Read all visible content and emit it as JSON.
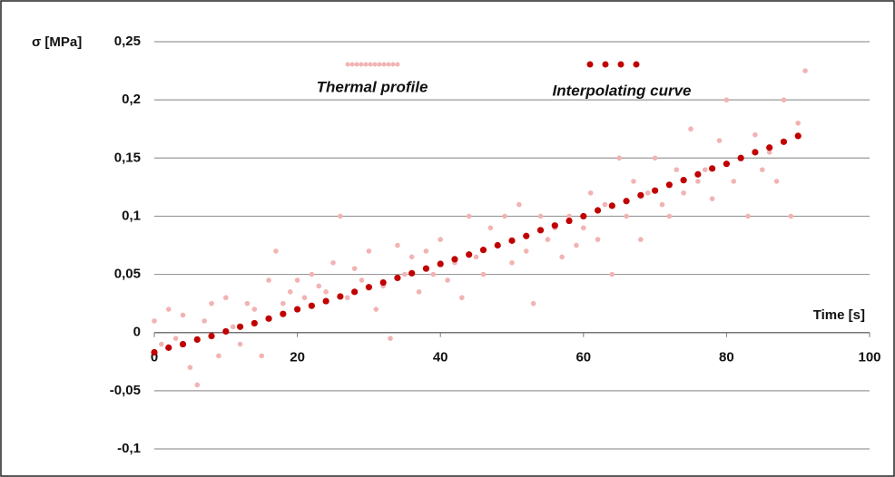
{
  "chart_data": {
    "type": "scatter",
    "y_label": "σ [MPa]",
    "x_label": "Time [s]",
    "xlim": [
      0,
      100
    ],
    "xticks": [
      0,
      20,
      40,
      60,
      80,
      100
    ],
    "ylim": [
      -0.1,
      0.25
    ],
    "yticks": [
      {
        "value": -0.1,
        "label": "-0,1"
      },
      {
        "value": -0.05,
        "label": "-0,05"
      },
      0,
      {
        "value": 0.05,
        "label": "0,05"
      },
      {
        "value": 0.1,
        "label": "0,1"
      },
      {
        "value": 0.15,
        "label": "0,15"
      },
      {
        "value": 0.2,
        "label": "0,2"
      },
      {
        "value": 0.25,
        "label": "0,25"
      }
    ],
    "grid": true,
    "series": [
      {
        "name": "Thermal profile",
        "color": "#f2b3b3",
        "x": [
          0,
          1,
          2,
          3,
          4,
          5,
          6,
          7,
          8,
          9,
          10,
          11,
          12,
          13,
          14,
          15,
          16,
          17,
          18,
          19,
          20,
          21,
          22,
          23,
          24,
          25,
          26,
          27,
          28,
          29,
          30,
          31,
          32,
          33,
          34,
          35,
          36,
          37,
          38,
          39,
          40,
          41,
          42,
          43,
          44,
          45,
          46,
          47,
          48,
          49,
          50,
          51,
          52,
          53,
          54,
          55,
          56,
          57,
          58,
          59,
          60,
          61,
          62,
          63,
          64,
          65,
          66,
          67,
          68,
          69,
          70,
          71,
          72,
          73,
          74,
          75,
          76,
          77,
          78,
          79,
          80,
          81,
          82,
          83,
          84,
          85,
          86,
          87,
          88,
          89,
          90,
          91
        ],
        "values": [
          0.01,
          -0.01,
          0.02,
          -0.005,
          0.015,
          -0.03,
          -0.045,
          0.01,
          0.025,
          -0.02,
          0.03,
          0.005,
          -0.01,
          0.025,
          0.02,
          -0.02,
          0.045,
          0.07,
          0.025,
          0.035,
          0.045,
          0.03,
          0.05,
          0.04,
          0.035,
          0.06,
          0.1,
          0.03,
          0.055,
          0.045,
          0.07,
          0.02,
          0.04,
          -0.005,
          0.075,
          0.05,
          0.065,
          0.035,
          0.07,
          0.05,
          0.08,
          0.045,
          0.06,
          0.03,
          0.1,
          0.065,
          0.05,
          0.09,
          0.075,
          0.1,
          0.06,
          0.11,
          0.07,
          0.025,
          0.1,
          0.08,
          0.09,
          0.065,
          0.1,
          0.075,
          0.09,
          0.12,
          0.08,
          0.11,
          0.05,
          0.15,
          0.1,
          0.13,
          0.08,
          0.12,
          0.15,
          0.11,
          0.1,
          0.14,
          0.12,
          0.175,
          0.13,
          0.14,
          0.115,
          0.165,
          0.2,
          0.13,
          0.15,
          0.1,
          0.17,
          0.14,
          0.155,
          0.13,
          0.2,
          0.1,
          0.18,
          0.225
        ]
      },
      {
        "name": "Interpolating curve",
        "color": "#c00000",
        "x": [
          0,
          2,
          4,
          6,
          8,
          10,
          12,
          14,
          16,
          18,
          20,
          22,
          24,
          26,
          28,
          30,
          32,
          34,
          36,
          38,
          40,
          42,
          44,
          46,
          48,
          50,
          52,
          54,
          56,
          58,
          60,
          62,
          64,
          66,
          68,
          70,
          72,
          74,
          76,
          78,
          80,
          82,
          84,
          86,
          88,
          90
        ],
        "values": [
          -0.017,
          -0.013,
          -0.01,
          -0.006,
          -0.003,
          0.001,
          0.005,
          0.008,
          0.012,
          0.016,
          0.02,
          0.023,
          0.027,
          0.031,
          0.035,
          0.039,
          0.043,
          0.047,
          0.051,
          0.055,
          0.059,
          0.063,
          0.067,
          0.071,
          0.075,
          0.079,
          0.083,
          0.088,
          0.092,
          0.096,
          0.1,
          0.105,
          0.109,
          0.113,
          0.118,
          0.122,
          0.127,
          0.131,
          0.136,
          0.141,
          0.145,
          0.15,
          0.155,
          0.159,
          0.164,
          0.169
        ]
      }
    ]
  }
}
